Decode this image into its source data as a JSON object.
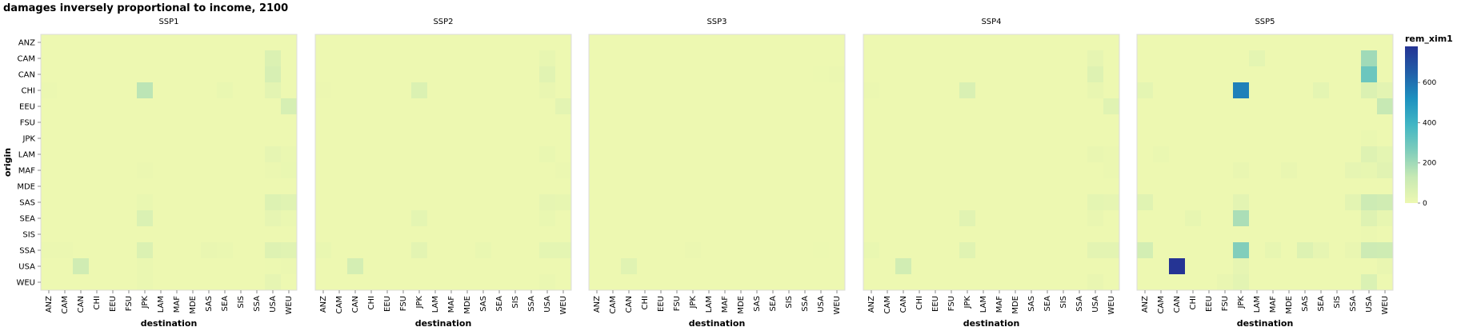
{
  "chart_data": {
    "type": "heatmap",
    "title": "damages inversely proportional to income, 2100",
    "xlabel": "destination",
    "ylabel": "origin",
    "categories": [
      "ANZ",
      "CAM",
      "CAN",
      "CHI",
      "EEU",
      "FSU",
      "JPK",
      "LAM",
      "MAF",
      "MDE",
      "SAS",
      "SEA",
      "SIS",
      "SSA",
      "USA",
      "WEU"
    ],
    "legend": {
      "title": "rem_xim1",
      "ticks": [
        0,
        200,
        400,
        600
      ],
      "domain": [
        0,
        780
      ],
      "colors": [
        "#edf8b1",
        "#c7e9b4",
        "#7fcdbb",
        "#41b6c4",
        "#1d91c0",
        "#225ea8",
        "#253494"
      ],
      "placement": "right"
    },
    "panels": [
      {
        "name": "SSP1",
        "cells": [
          [
            "CAM",
            "USA",
            60
          ],
          [
            "CAN",
            "USA",
            75
          ],
          [
            "CHI",
            "JPK",
            150
          ],
          [
            "CHI",
            "USA",
            35
          ],
          [
            "CHI",
            "SEA",
            12
          ],
          [
            "CHI",
            "ANZ",
            6
          ],
          [
            "EEU",
            "WEU",
            80
          ],
          [
            "LAM",
            "USA",
            25
          ],
          [
            "LAM",
            "WEU",
            10
          ],
          [
            "MAF",
            "WEU",
            12
          ],
          [
            "MAF",
            "JPK",
            8
          ],
          [
            "MAF",
            "USA",
            8
          ],
          [
            "SAS",
            "USA",
            55
          ],
          [
            "SAS",
            "WEU",
            45
          ],
          [
            "SAS",
            "JPK",
            12
          ],
          [
            "SEA",
            "JPK",
            65
          ],
          [
            "SEA",
            "USA",
            25
          ],
          [
            "SEA",
            "WEU",
            10
          ],
          [
            "SSA",
            "JPK",
            60
          ],
          [
            "SSA",
            "USA",
            50
          ],
          [
            "SSA",
            "WEU",
            45
          ],
          [
            "SSA",
            "SAS",
            15
          ],
          [
            "SSA",
            "SEA",
            10
          ],
          [
            "SSA",
            "ANZ",
            8
          ],
          [
            "SSA",
            "CAM",
            6
          ],
          [
            "USA",
            "CAN",
            100
          ],
          [
            "USA",
            "JPK",
            10
          ],
          [
            "USA",
            "USA",
            2
          ],
          [
            "USA",
            "WEU",
            8
          ],
          [
            "WEU",
            "USA",
            25
          ],
          [
            "WEU",
            "JPK",
            10
          ]
        ]
      },
      {
        "name": "SSP2",
        "cells": [
          [
            "CAM",
            "USA",
            20
          ],
          [
            "CAN",
            "USA",
            40
          ],
          [
            "CHI",
            "JPK",
            60
          ],
          [
            "CHI",
            "USA",
            15
          ],
          [
            "CHI",
            "ANZ",
            5
          ],
          [
            "EEU",
            "WEU",
            35
          ],
          [
            "LAM",
            "USA",
            12
          ],
          [
            "MAF",
            "WEU",
            8
          ],
          [
            "SAS",
            "USA",
            25
          ],
          [
            "SAS",
            "WEU",
            20
          ],
          [
            "SEA",
            "JPK",
            30
          ],
          [
            "SEA",
            "USA",
            12
          ],
          [
            "SSA",
            "JPK",
            35
          ],
          [
            "SSA",
            "USA",
            30
          ],
          [
            "SSA",
            "WEU",
            30
          ],
          [
            "SSA",
            "ANZ",
            12
          ],
          [
            "SSA",
            "SAS",
            12
          ],
          [
            "USA",
            "CAN",
            85
          ],
          [
            "WEU",
            "USA",
            10
          ]
        ]
      },
      {
        "name": "SSP3",
        "cells": [
          [
            "CAN",
            "USA",
            4
          ],
          [
            "CAN",
            "WEU",
            8
          ],
          [
            "USA",
            "CAN",
            45
          ],
          [
            "SSA",
            "JPK",
            6
          ],
          [
            "SSA",
            "USA",
            3
          ]
        ]
      },
      {
        "name": "SSP4",
        "cells": [
          [
            "CAM",
            "USA",
            25
          ],
          [
            "CAN",
            "USA",
            50
          ],
          [
            "CHI",
            "JPK",
            70
          ],
          [
            "CHI",
            "USA",
            18
          ],
          [
            "CHI",
            "ANZ",
            6
          ],
          [
            "EEU",
            "WEU",
            45
          ],
          [
            "LAM",
            "USA",
            14
          ],
          [
            "LAM",
            "WEU",
            8
          ],
          [
            "MAF",
            "WEU",
            8
          ],
          [
            "SAS",
            "USA",
            30
          ],
          [
            "SAS",
            "WEU",
            25
          ],
          [
            "SEA",
            "JPK",
            40
          ],
          [
            "SEA",
            "USA",
            15
          ],
          [
            "SSA",
            "JPK",
            45
          ],
          [
            "SSA",
            "USA",
            35
          ],
          [
            "SSA",
            "WEU",
            35
          ],
          [
            "SSA",
            "ANZ",
            12
          ],
          [
            "USA",
            "CAN",
            95
          ],
          [
            "WEU",
            "USA",
            15
          ]
        ]
      },
      {
        "name": "SSP5",
        "cells": [
          [
            "CAM",
            "USA",
            200
          ],
          [
            "CAM",
            "LAM",
            30
          ],
          [
            "CAN",
            "USA",
            300
          ],
          [
            "CHI",
            "JPK",
            560
          ],
          [
            "CHI",
            "USA",
            60
          ],
          [
            "CHI",
            "WEU",
            35
          ],
          [
            "CHI",
            "SEA",
            30
          ],
          [
            "CHI",
            "ANZ",
            30
          ],
          [
            "EEU",
            "WEU",
            130
          ],
          [
            "JPK",
            "USA",
            10
          ],
          [
            "LAM",
            "USA",
            50
          ],
          [
            "LAM",
            "WEU",
            30
          ],
          [
            "LAM",
            "CAM",
            10
          ],
          [
            "MAF",
            "WEU",
            40
          ],
          [
            "MAF",
            "USA",
            20
          ],
          [
            "MAF",
            "SSA",
            25
          ],
          [
            "MAF",
            "MDE",
            15
          ],
          [
            "MAF",
            "JPK",
            15
          ],
          [
            "SAS",
            "USA",
            110
          ],
          [
            "SAS",
            "WEU",
            100
          ],
          [
            "SAS",
            "SSA",
            35
          ],
          [
            "SAS",
            "JPK",
            35
          ],
          [
            "SAS",
            "ANZ",
            45
          ],
          [
            "SEA",
            "JPK",
            180
          ],
          [
            "SEA",
            "USA",
            50
          ],
          [
            "SEA",
            "CHI",
            20
          ],
          [
            "SEA",
            "WEU",
            20
          ],
          [
            "SIS",
            "USA",
            8
          ],
          [
            "SSA",
            "JPK",
            255
          ],
          [
            "SSA",
            "USA",
            110
          ],
          [
            "SSA",
            "WEU",
            105
          ],
          [
            "SSA",
            "ANZ",
            90
          ],
          [
            "SSA",
            "SAS",
            55
          ],
          [
            "SSA",
            "SEA",
            25
          ],
          [
            "SSA",
            "MAF",
            20
          ],
          [
            "SSA",
            "SSA",
            15
          ],
          [
            "USA",
            "CAN",
            780
          ],
          [
            "USA",
            "JPK",
            25
          ],
          [
            "USA",
            "WEU",
            15
          ],
          [
            "WEU",
            "USA",
            65
          ],
          [
            "WEU",
            "JPK",
            35
          ],
          [
            "WEU",
            "FSU",
            15
          ]
        ]
      }
    ]
  }
}
